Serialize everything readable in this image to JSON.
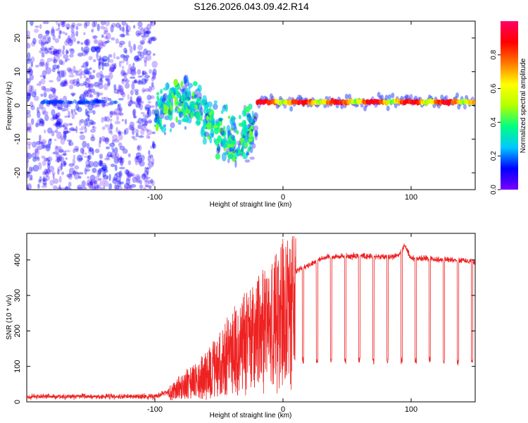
{
  "figure": {
    "title": "S126.2026.043.09.42.R14"
  },
  "chart_data": [
    {
      "type": "heatmap",
      "title": "S126.2026.043.09.42.R14",
      "xlabel": "Height of straight line (km)",
      "ylabel": "Frequency (Hz)",
      "xlim": [
        -200,
        150
      ],
      "ylim": [
        -25,
        25
      ],
      "xticks": [
        -100,
        0,
        100
      ],
      "yticks": [
        -20,
        -10,
        0,
        10,
        20
      ],
      "colorbar": {
        "label": "Normalized spectral amplitude",
        "range": [
          0,
          1
        ],
        "ticks": [
          0.0,
          0.2,
          0.4,
          0.6,
          0.8
        ],
        "tick_labels": [
          "0.0",
          "0.2",
          "0.4",
          "0.6",
          "0.8"
        ],
        "colormap": [
          "#7a00ff",
          "#0000ff",
          "#00c8ff",
          "#00ff80",
          "#b4ff00",
          "#ffff00",
          "#ff7800",
          "#ff0000",
          "#ff0066"
        ]
      },
      "regions": [
        {
          "x_range": [
            -200,
            -100
          ],
          "y_range": [
            -25,
            25
          ],
          "description": "scattered noise",
          "amplitude": 0.1
        },
        {
          "x_range": [
            -100,
            -20
          ],
          "y_range": [
            -20,
            12
          ],
          "description": "chaotic signal",
          "amplitude": 0.25
        },
        {
          "x_range": [
            -20,
            150
          ],
          "y_range": [
            -1,
            3
          ],
          "description": "steady tone near 1 Hz",
          "amplitude": 0.85
        }
      ]
    },
    {
      "type": "line",
      "xlabel": "Height of straight line (km)",
      "ylabel": "SNR (10 * v/v)",
      "xlim": [
        -200,
        150
      ],
      "ylim": [
        0,
        475
      ],
      "xticks": [
        -100,
        0,
        100
      ],
      "yticks": [
        0,
        100,
        200,
        300,
        400
      ],
      "series": [
        {
          "name": "SNR",
          "color": "#ee2222",
          "x": [
            -200,
            -180,
            -160,
            -140,
            -120,
            -100,
            -90,
            -80,
            -70,
            -60,
            -50,
            -40,
            -30,
            -20,
            -10,
            0,
            5,
            10,
            20,
            30,
            40,
            50,
            60,
            70,
            80,
            90,
            95,
            100,
            110,
            120,
            130,
            140,
            150
          ],
          "values": [
            15,
            15,
            15,
            15,
            15,
            15,
            30,
            60,
            80,
            110,
            150,
            200,
            240,
            270,
            310,
            350,
            360,
            370,
            385,
            405,
            410,
            410,
            412,
            410,
            408,
            412,
            440,
            405,
            405,
            400,
            400,
            400,
            395
          ],
          "dropouts_level": 115
        }
      ]
    }
  ]
}
